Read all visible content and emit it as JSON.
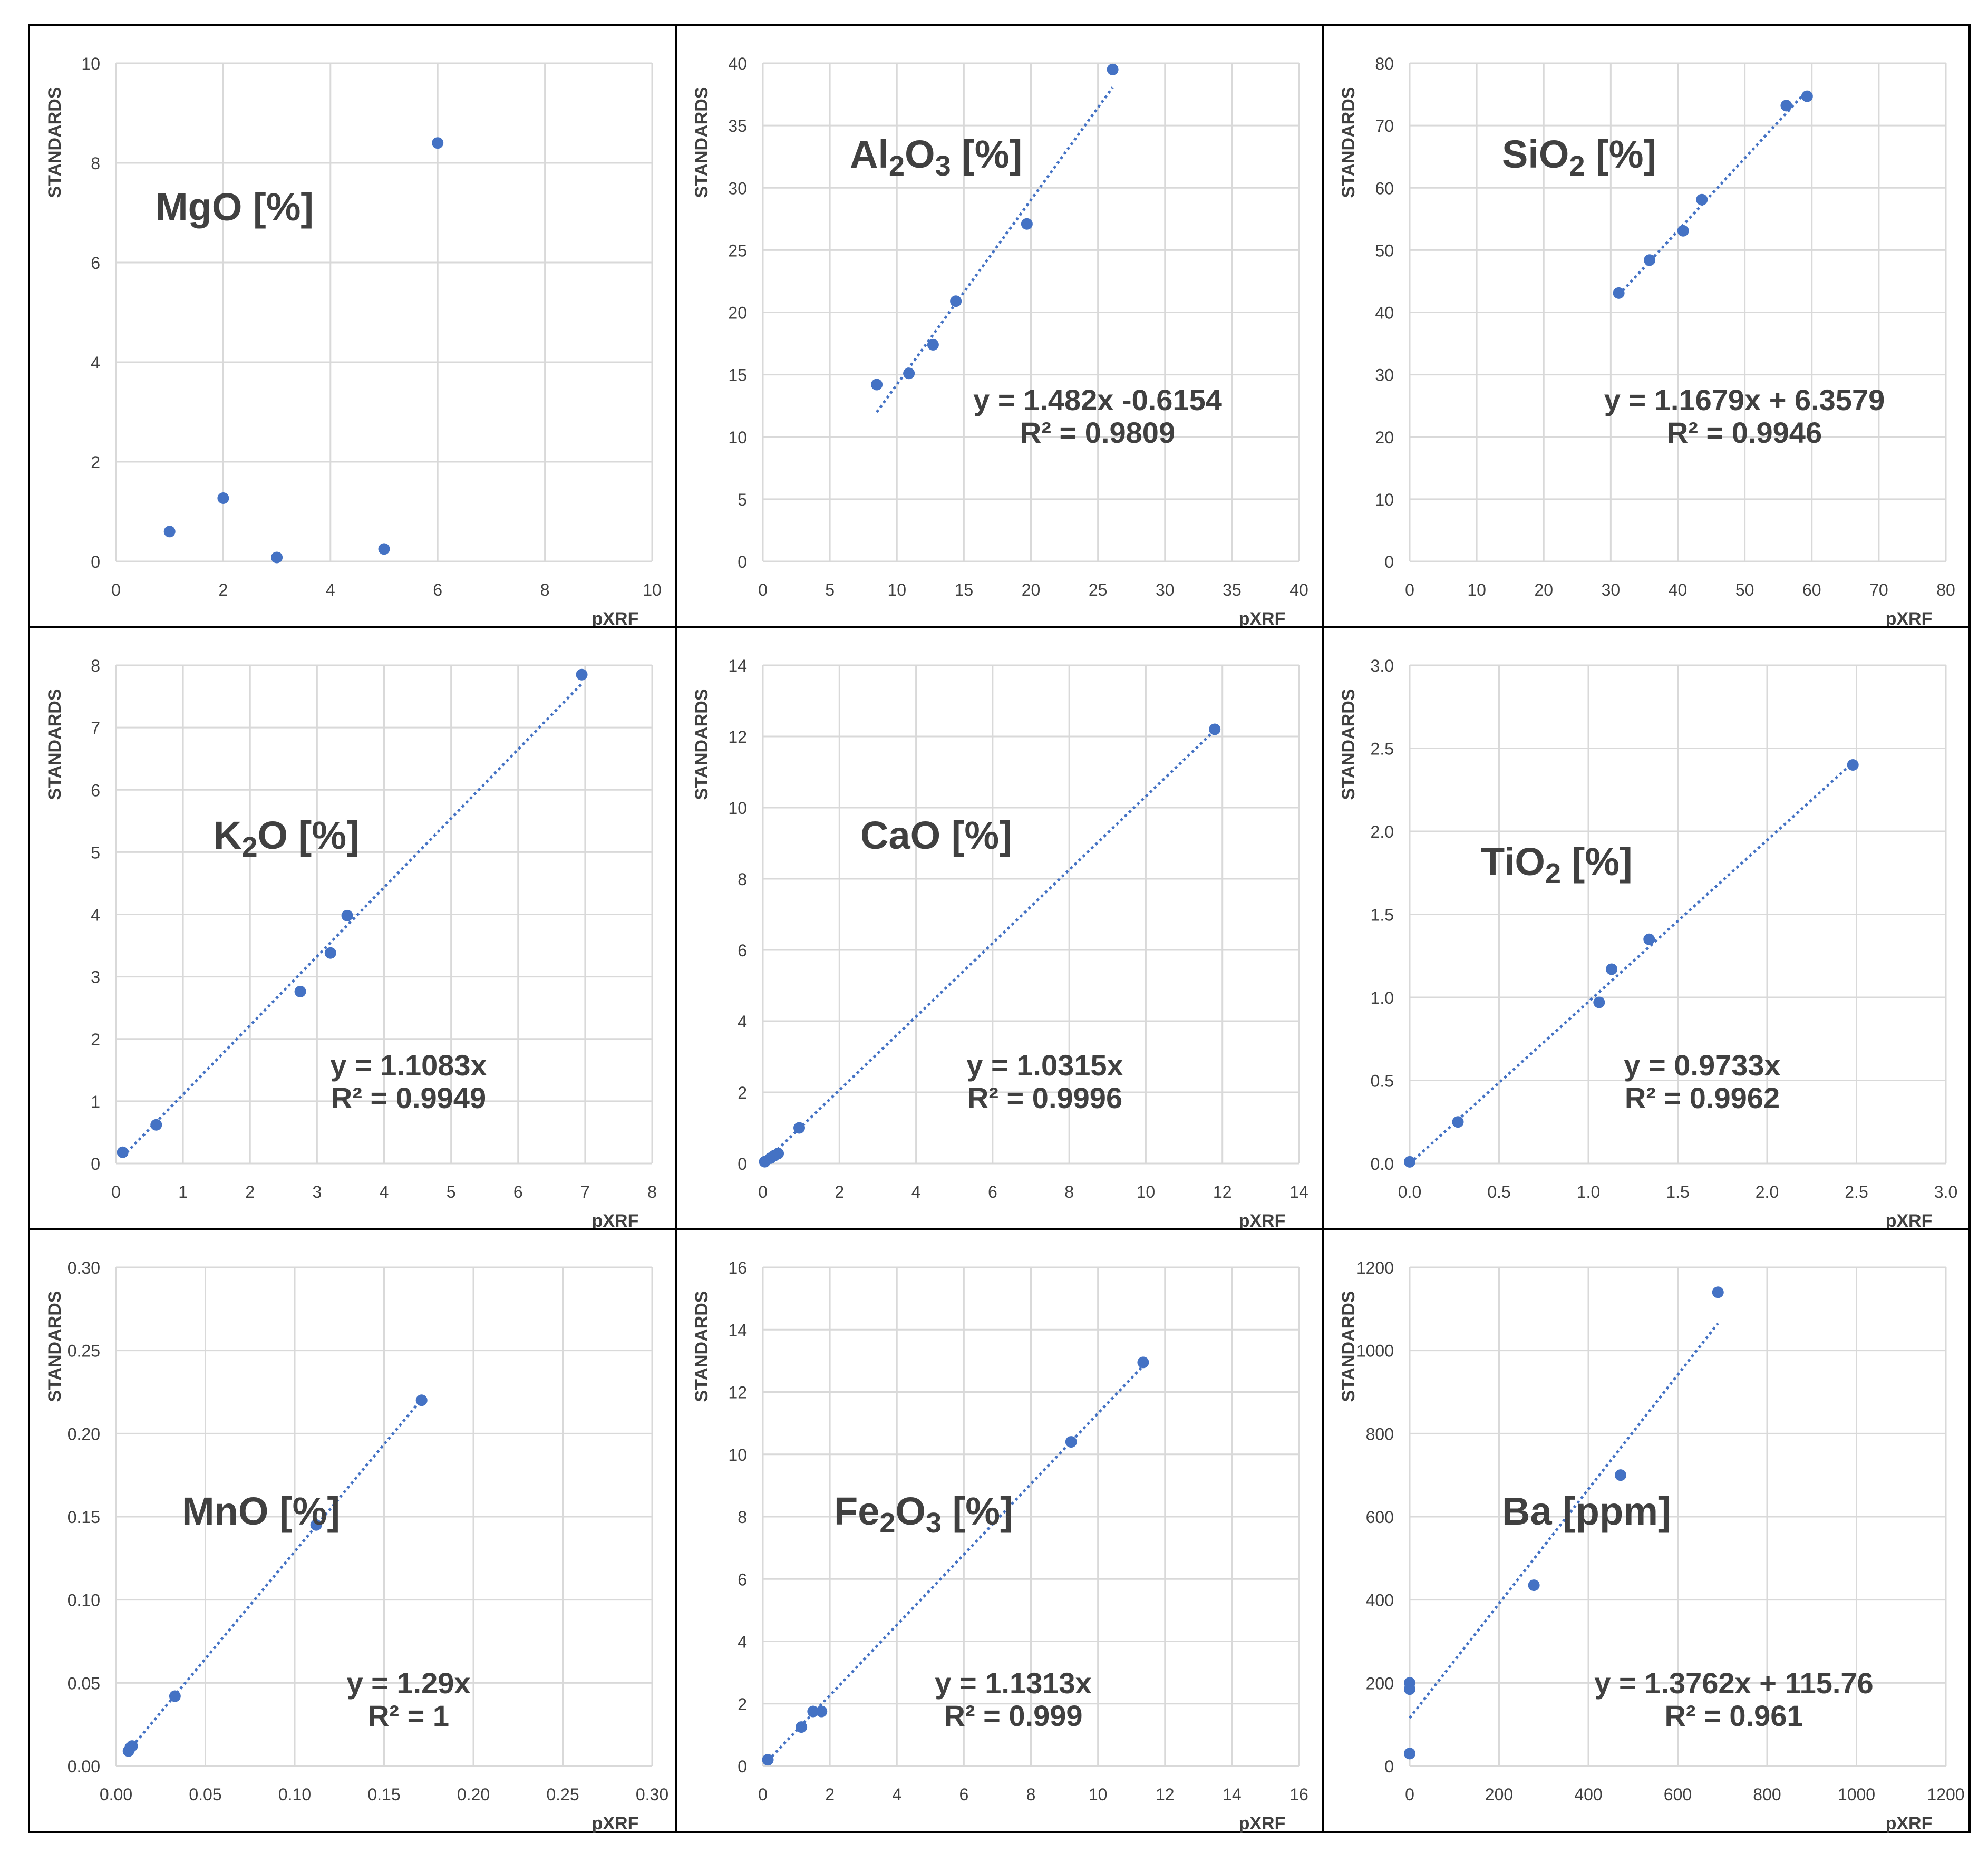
{
  "chart_data": [
    {
      "type": "scatter",
      "title": "MgO [%]",
      "xlabel": "pXRF",
      "ylabel": "STANDARDS",
      "xlim": [
        0,
        10
      ],
      "ylim": [
        0,
        10
      ],
      "xticks": [
        "0",
        "2",
        "4",
        "6",
        "8",
        "10"
      ],
      "yticks": [
        "0",
        "2",
        "4",
        "6",
        "8",
        "10"
      ],
      "grid": true,
      "points": [
        [
          1,
          0.6
        ],
        [
          2,
          1.27
        ],
        [
          3,
          0.08
        ],
        [
          5,
          0.25
        ],
        [
          6,
          8.4
        ]
      ],
      "trendline": null
    },
    {
      "type": "scatter",
      "title": "Al2O3 [%]",
      "title_parts": {
        "base": "Al",
        "sub1": "2",
        "mid": "O",
        "sub2": "3",
        "tail": " [%]"
      },
      "xlabel": "pXRF",
      "ylabel": "STANDARDS",
      "xlim": [
        0,
        40
      ],
      "ylim": [
        0,
        40
      ],
      "xticks": [
        "0",
        "5",
        "10",
        "15",
        "20",
        "25",
        "30",
        "35",
        "40"
      ],
      "yticks": [
        "0",
        "5",
        "10",
        "15",
        "20",
        "25",
        "30",
        "35",
        "40"
      ],
      "grid": true,
      "points": [
        [
          8.5,
          14.2
        ],
        [
          10.9,
          15.1
        ],
        [
          12.7,
          17.4
        ],
        [
          14.4,
          20.9
        ],
        [
          19.7,
          27.1
        ],
        [
          26.1,
          39.5
        ]
      ],
      "trendline": {
        "slope": 1.482,
        "intercept": -0.6154,
        "x_range": [
          8.5,
          26.1
        ],
        "equation": "y = 1.482x -0.6154",
        "r2": "R² = 0.9809"
      }
    },
    {
      "type": "scatter",
      "title": "SiO2 [%]",
      "title_parts": {
        "base": "SiO",
        "sub1": "2",
        "mid": "",
        "sub2": "",
        "tail": " [%]"
      },
      "xlabel": "pXRF",
      "ylabel": "STANDARDS",
      "xlim": [
        0,
        80
      ],
      "ylim": [
        0,
        80
      ],
      "xticks": [
        "0",
        "10",
        "20",
        "30",
        "40",
        "50",
        "60",
        "70",
        "80"
      ],
      "yticks": [
        "0",
        "10",
        "20",
        "30",
        "40",
        "50",
        "60",
        "70",
        "80"
      ],
      "grid": true,
      "points": [
        [
          31.2,
          43.1
        ],
        [
          35.8,
          48.4
        ],
        [
          40.8,
          53.1
        ],
        [
          43.6,
          58.1
        ],
        [
          56.2,
          73.2
        ],
        [
          59.3,
          74.7
        ]
      ],
      "trendline": {
        "slope": 1.1679,
        "intercept": 6.3579,
        "x_range": [
          31.2,
          59.3
        ],
        "equation": "y = 1.1679x + 6.3579",
        "r2": "R² = 0.9946"
      }
    },
    {
      "type": "scatter",
      "title": "K2O [%]",
      "title_parts": {
        "base": "K",
        "sub1": "2",
        "mid": "O",
        "sub2": "",
        "tail": " [%]"
      },
      "xlabel": "pXRF",
      "ylabel": "STANDARDS",
      "xlim": [
        0,
        8
      ],
      "ylim": [
        0,
        8
      ],
      "xticks": [
        "0",
        "1",
        "2",
        "3",
        "4",
        "5",
        "6",
        "7",
        "8"
      ],
      "yticks": [
        "0",
        "1",
        "2",
        "3",
        "4",
        "5",
        "6",
        "7",
        "8"
      ],
      "grid": true,
      "points": [
        [
          0.1,
          0.18
        ],
        [
          0.6,
          0.62
        ],
        [
          2.75,
          2.76
        ],
        [
          3.2,
          3.38
        ],
        [
          3.45,
          3.98
        ],
        [
          6.95,
          7.85
        ]
      ],
      "trendline": {
        "slope": 1.1083,
        "intercept": 0,
        "x_range": [
          0.1,
          6.95
        ],
        "equation": "y = 1.1083x",
        "r2": "R² = 0.9949"
      }
    },
    {
      "type": "scatter",
      "title": "CaO [%]",
      "title_parts": {
        "base": "CaO",
        "sub1": "",
        "mid": "",
        "sub2": "",
        "tail": " [%]"
      },
      "xlabel": "pXRF",
      "ylabel": "STANDARDS",
      "xlim": [
        0,
        14
      ],
      "ylim": [
        0,
        14
      ],
      "xticks": [
        "0",
        "2",
        "4",
        "6",
        "8",
        "10",
        "12",
        "14"
      ],
      "yticks": [
        "0",
        "2",
        "4",
        "6",
        "8",
        "10",
        "12",
        "14"
      ],
      "grid": true,
      "points": [
        [
          0.05,
          0.05
        ],
        [
          0.2,
          0.15
        ],
        [
          0.3,
          0.22
        ],
        [
          0.4,
          0.28
        ],
        [
          0.95,
          1.0
        ],
        [
          11.8,
          12.2
        ]
      ],
      "trendline": {
        "slope": 1.0315,
        "intercept": 0,
        "x_range": [
          0.05,
          11.8
        ],
        "equation": "y = 1.0315x",
        "r2": "R² = 0.9996"
      }
    },
    {
      "type": "scatter",
      "title": "TiO2 [%]",
      "title_parts": {
        "base": "TiO",
        "sub1": "2",
        "mid": "",
        "sub2": "",
        "tail": " [%]"
      },
      "xlabel": "pXRF",
      "ylabel": "STANDARDS",
      "xlim": [
        0,
        3
      ],
      "ylim": [
        0,
        3
      ],
      "xticks": [
        "0.0",
        "0.5",
        "1.0",
        "1.5",
        "2.0",
        "2.5",
        "3.0"
      ],
      "yticks": [
        "0.0",
        "0.5",
        "1.0",
        "1.5",
        "2.0",
        "2.5",
        "3.0"
      ],
      "grid": true,
      "points": [
        [
          0.0,
          0.01
        ],
        [
          0.27,
          0.25
        ],
        [
          1.06,
          0.97
        ],
        [
          1.13,
          1.17
        ],
        [
          1.34,
          1.35
        ],
        [
          2.48,
          2.4
        ]
      ],
      "trendline": {
        "slope": 0.9733,
        "intercept": 0,
        "x_range": [
          0.0,
          2.48
        ],
        "equation": "y = 0.9733x",
        "r2": "R² = 0.9962"
      }
    },
    {
      "type": "scatter",
      "title": "MnO [%]",
      "title_parts": {
        "base": "MnO",
        "sub1": "",
        "mid": "",
        "sub2": "",
        "tail": " [%]"
      },
      "xlabel": "pXRF",
      "ylabel": "STANDARDS",
      "xlim": [
        0,
        0.3
      ],
      "ylim": [
        0,
        0.3
      ],
      "xticks": [
        "0.00",
        "0.05",
        "0.10",
        "0.15",
        "0.20",
        "0.25",
        "0.30"
      ],
      "yticks": [
        "0.00",
        "0.05",
        "0.10",
        "0.15",
        "0.20",
        "0.25",
        "0.30"
      ],
      "grid": true,
      "points": [
        [
          0.007,
          0.009
        ],
        [
          0.008,
          0.011
        ],
        [
          0.009,
          0.012
        ],
        [
          0.033,
          0.042
        ],
        [
          0.112,
          0.145
        ],
        [
          0.171,
          0.22
        ]
      ],
      "trendline": {
        "slope": 1.29,
        "intercept": 0,
        "x_range": [
          0.007,
          0.171
        ],
        "equation": "y = 1.29x",
        "r2": "R² = 1"
      }
    },
    {
      "type": "scatter",
      "title": "Fe2O3 [%]",
      "title_parts": {
        "base": "Fe",
        "sub1": "2",
        "mid": "O",
        "sub2": "3",
        "tail": " [%]"
      },
      "xlabel": "pXRF",
      "ylabel": "STANDARDS",
      "xlim": [
        0,
        16
      ],
      "ylim": [
        0,
        16
      ],
      "xticks": [
        "0",
        "2",
        "4",
        "6",
        "8",
        "10",
        "12",
        "14",
        "16"
      ],
      "yticks": [
        "0",
        "2",
        "4",
        "6",
        "8",
        "10",
        "12",
        "14",
        "16"
      ],
      "grid": true,
      "points": [
        [
          0.15,
          0.2
        ],
        [
          1.15,
          1.25
        ],
        [
          1.5,
          1.75
        ],
        [
          1.75,
          1.75
        ],
        [
          9.2,
          10.4
        ],
        [
          11.35,
          12.95
        ]
      ],
      "trendline": {
        "slope": 1.1313,
        "intercept": 0,
        "x_range": [
          0.15,
          11.35
        ],
        "equation": "y = 1.1313x",
        "r2": "R² = 0.999"
      }
    },
    {
      "type": "scatter",
      "title": "Ba [ppm]",
      "title_parts": {
        "base": "Ba",
        "sub1": "",
        "mid": "",
        "sub2": "",
        "tail": " [ppm]"
      },
      "xlabel": "pXRF",
      "ylabel": "STANDARDS",
      "xlim": [
        0,
        1200
      ],
      "ylim": [
        0,
        1200
      ],
      "xticks": [
        "0",
        "200",
        "400",
        "600",
        "800",
        "1000",
        "1200"
      ],
      "yticks": [
        "0",
        "200",
        "400",
        "600",
        "800",
        "1000",
        "1200"
      ],
      "grid": true,
      "points": [
        [
          0,
          30
        ],
        [
          0,
          185
        ],
        [
          0,
          200
        ],
        [
          278,
          435
        ],
        [
          472,
          700
        ],
        [
          690,
          1140
        ]
      ],
      "trendline": {
        "slope": 1.3762,
        "intercept": 115.76,
        "x_range": [
          0,
          690
        ],
        "equation": "y = 1.3762x + 115.76",
        "r2": "R² = 0.961"
      }
    }
  ],
  "style": {
    "marker_color": "#4472c4",
    "grid_color": "#d9d9d9",
    "text_color": "#404040",
    "frame_color": "#000000"
  }
}
